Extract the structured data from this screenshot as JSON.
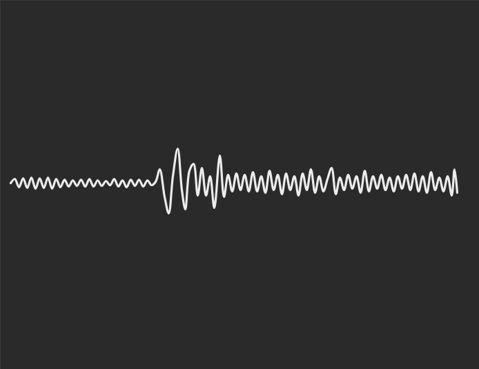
{
  "chart_data": {
    "type": "line",
    "color": "#ececec",
    "grid": false,
    "tick_labels": false,
    "xlim": [
      0,
      694
    ],
    "ylim": [
      -270,
      265
    ],
    "x": [
      15,
      21,
      27,
      33,
      39,
      45,
      51,
      57,
      63,
      69,
      75,
      81,
      87,
      93,
      99,
      105,
      111,
      117,
      123,
      129,
      135,
      141,
      147,
      153,
      159,
      165,
      171,
      177,
      183,
      189,
      195,
      201,
      207,
      213,
      219,
      225,
      231,
      238,
      244,
      250,
      257,
      263,
      268,
      274,
      280,
      286,
      292,
      298,
      304,
      310,
      318,
      324,
      330,
      336,
      342,
      348,
      354,
      360,
      366,
      372,
      378,
      384,
      390,
      396,
      402,
      408,
      414,
      420,
      426,
      432,
      438,
      444,
      450,
      456,
      462,
      468,
      474,
      480,
      486,
      492,
      498,
      504,
      510,
      516,
      522,
      528,
      534,
      540,
      546,
      552,
      558,
      564,
      570,
      576,
      582,
      588,
      594,
      600,
      606,
      612,
      618,
      624,
      630,
      636,
      642,
      648,
      654,
      658,
      662
    ],
    "values": [
      0,
      6,
      -6,
      7,
      -7,
      8,
      -8,
      7,
      -7,
      8,
      -8,
      6,
      -6,
      5,
      -5,
      4,
      -4,
      5,
      -5,
      6,
      -5,
      4,
      -4,
      3,
      -3,
      6,
      -5,
      4,
      -6,
      5,
      -4,
      5,
      -5,
      4,
      -3,
      2,
      20,
      -20,
      -44,
      10,
      50,
      -10,
      -38,
      18,
      28,
      -18,
      22,
      -18,
      10,
      -36,
      40,
      -20,
      12,
      -12,
      14,
      -10,
      12,
      -12,
      16,
      -12,
      10,
      -14,
      18,
      -10,
      12,
      -16,
      14,
      -10,
      10,
      -18,
      14,
      -10,
      20,
      -14,
      10,
      -12,
      6,
      22,
      -16,
      8,
      -10,
      12,
      -8,
      10,
      -14,
      18,
      -12,
      10,
      -8,
      12,
      -10,
      8,
      -12,
      10,
      -8,
      12,
      -10,
      14,
      -12,
      10,
      -14,
      16,
      -10,
      8,
      -12,
      10,
      -18,
      20,
      -14
    ]
  }
}
